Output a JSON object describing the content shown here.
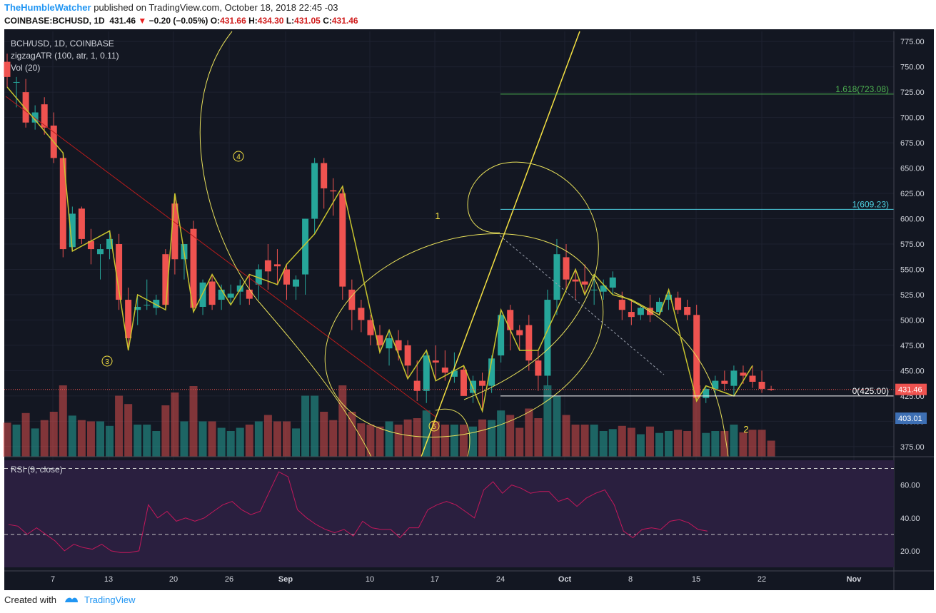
{
  "header": {
    "user": "TheHumbleWatcher",
    "published_text": "published on TradingView.com, October 18, 2018 22:45 -03",
    "symbol": "COINBASE:BCHUSD, 1D",
    "last": "431.46",
    "change": "−0.20 (−0.05%)",
    "o_label": "O:",
    "o": "431.66",
    "h_label": "H:",
    "h": "434.30",
    "l_label": "L:",
    "l": "431.05",
    "c_label": "C:",
    "c": "431.46"
  },
  "legend": {
    "line1": "BCH/USD, 1D, COINBASE",
    "line2": "zigzagATR (100, atr, 1, 0.11)",
    "line3": "Vol (20)",
    "rsi": "RSI (9, close)"
  },
  "annotations": {
    "fib_1618": "1.618(723.08)",
    "fib_1": "1(609.23)",
    "fib_0": "0(425.00)",
    "wave_1": "1",
    "wave_2": "2",
    "wave_3": "3",
    "wave_4": "4",
    "wave_5": "5",
    "price_tag_last": "431.46",
    "price_tag_2": "403.01"
  },
  "footer": {
    "created_with": "Created with",
    "brand": "TradingView"
  },
  "colors": {
    "background": "#131722",
    "up": "#26a69a",
    "down": "#ef5350",
    "zigzag": "#c8c42e",
    "annotation": "#f5e142",
    "fib_1618": "#4caf50",
    "fib_1": "#4dd0e1",
    "rsi_bg": "#2a1f3f",
    "rsi_line": "#c2185b"
  },
  "chart_data": {
    "type": "candlestick",
    "title": "BCH/USD, 1D, COINBASE",
    "y_axis_ticks": [
      "775.00",
      "750.00",
      "725.00",
      "700.00",
      "675.00",
      "650.00",
      "625.00",
      "600.00",
      "575.00",
      "550.00",
      "525.00",
      "500.00",
      "475.00",
      "450.00",
      "425.00",
      "400.00",
      "375.00"
    ],
    "ylim": [
      365,
      785
    ],
    "x_axis_ticks": [
      "7",
      "13",
      "20",
      "26",
      "Sep",
      "10",
      "17",
      "24",
      "Oct",
      "8",
      "15",
      "22",
      "Nov"
    ],
    "series": [
      {
        "name": "BCH/USD",
        "ohlc": [
          [
            755,
            763,
            730,
            740
          ],
          [
            735,
            740,
            710,
            735
          ],
          [
            725,
            738,
            690,
            695
          ],
          [
            695,
            712,
            688,
            705
          ],
          [
            713,
            720,
            683,
            690
          ],
          [
            692,
            705,
            655,
            660
          ],
          [
            660,
            665,
            562,
            570
          ],
          [
            572,
            612,
            568,
            605
          ],
          [
            610,
            612,
            575,
            580
          ],
          [
            578,
            590,
            555,
            570
          ],
          [
            565,
            575,
            540,
            570
          ],
          [
            570,
            588,
            560,
            580
          ],
          [
            575,
            585,
            510,
            520
          ],
          [
            520,
            532,
            470,
            482
          ],
          [
            510,
            525,
            495,
            513
          ],
          [
            515,
            540,
            510,
            515
          ],
          [
            512,
            525,
            505,
            520
          ],
          [
            565,
            570,
            510,
            515
          ],
          [
            615,
            625,
            545,
            560
          ],
          [
            560,
            575,
            540,
            575
          ],
          [
            590,
            598,
            508,
            512
          ],
          [
            513,
            540,
            505,
            537
          ],
          [
            538,
            545,
            510,
            515
          ],
          [
            520,
            535,
            510,
            530
          ],
          [
            522,
            535,
            515,
            526
          ],
          [
            528,
            540,
            515,
            534
          ],
          [
            530,
            545,
            515,
            521
          ],
          [
            535,
            555,
            520,
            550
          ],
          [
            559,
            575,
            530,
            548
          ],
          [
            555,
            570,
            535,
            553
          ],
          [
            550,
            555,
            520,
            535
          ],
          [
            533,
            544,
            520,
            540
          ],
          [
            545,
            600,
            525,
            600
          ],
          [
            600,
            660,
            585,
            655
          ],
          [
            655,
            660,
            610,
            630
          ],
          [
            628,
            640,
            603,
            627
          ],
          [
            625,
            632,
            520,
            533
          ],
          [
            530,
            540,
            490,
            510
          ],
          [
            512,
            520,
            488,
            500
          ],
          [
            500,
            505,
            475,
            485
          ],
          [
            485,
            495,
            468,
            475
          ],
          [
            472,
            490,
            455,
            482
          ],
          [
            480,
            490,
            460,
            470
          ],
          [
            475,
            480,
            442,
            455
          ],
          [
            440,
            460,
            420,
            430
          ],
          [
            430,
            470,
            418,
            465
          ],
          [
            460,
            475,
            440,
            458
          ],
          [
            453,
            470,
            440,
            448
          ],
          [
            444,
            468,
            438,
            450
          ],
          [
            451,
            455,
            425,
            425
          ],
          [
            428,
            445,
            418,
            440
          ],
          [
            440,
            448,
            410,
            435
          ],
          [
            435,
            465,
            428,
            462
          ],
          [
            465,
            510,
            458,
            505
          ],
          [
            510,
            515,
            470,
            490
          ],
          [
            490,
            495,
            470,
            485
          ],
          [
            495,
            505,
            450,
            460
          ],
          [
            460,
            470,
            430,
            445
          ],
          [
            445,
            530,
            435,
            520
          ],
          [
            520,
            580,
            505,
            565
          ],
          [
            562,
            575,
            530,
            540
          ],
          [
            540,
            550,
            520,
            538
          ],
          [
            538,
            555,
            525,
            535
          ],
          [
            530,
            545,
            515,
            530
          ],
          [
            528,
            540,
            520,
            534
          ],
          [
            532,
            548,
            525,
            542
          ],
          [
            520,
            528,
            500,
            510
          ],
          [
            508,
            520,
            495,
            503
          ],
          [
            505,
            515,
            500,
            512
          ],
          [
            512,
            525,
            498,
            505
          ],
          [
            508,
            522,
            505,
            518
          ],
          [
            520,
            530,
            510,
            525
          ],
          [
            522,
            528,
            506,
            510
          ],
          [
            513,
            520,
            500,
            505
          ],
          [
            505,
            515,
            420,
            423
          ],
          [
            423,
            435,
            418,
            432
          ],
          [
            432,
            445,
            425,
            440
          ],
          [
            440,
            450,
            430,
            437
          ],
          [
            435,
            455,
            425,
            450
          ],
          [
            448,
            455,
            437,
            445
          ],
          [
            445,
            455,
            433,
            439
          ],
          [
            439,
            450,
            428,
            432
          ],
          [
            432,
            435,
            430,
            431
          ]
        ]
      }
    ],
    "volume_scale_note": "volume bars relative",
    "rsi": {
      "ticks": [
        "60.00",
        "40.00",
        "20.00"
      ],
      "levels": [
        70,
        30
      ]
    }
  }
}
